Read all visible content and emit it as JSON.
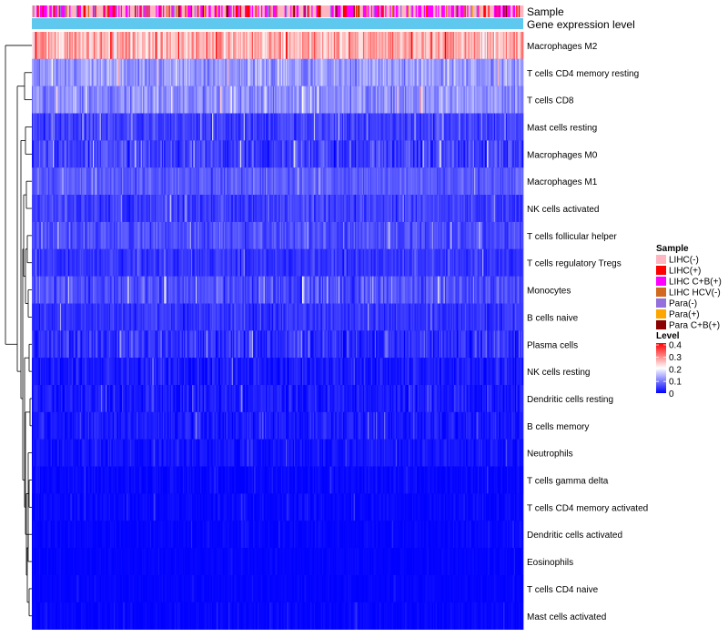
{
  "chart_data": {
    "type": "heatmap",
    "annotation_tracks": [
      "Sample",
      "Gene expression level"
    ],
    "rows": [
      {
        "label": "Macrophages M2",
        "mean": 0.26,
        "spread": 0.1
      },
      {
        "label": "T cells CD4 memory resting",
        "mean": 0.12,
        "spread": 0.07
      },
      {
        "label": "T cells CD8",
        "mean": 0.11,
        "spread": 0.07
      },
      {
        "label": "Mast cells resting",
        "mean": 0.05,
        "spread": 0.05
      },
      {
        "label": "Macrophages M0",
        "mean": 0.05,
        "spread": 0.07
      },
      {
        "label": "Macrophages M1",
        "mean": 0.07,
        "spread": 0.04
      },
      {
        "label": "NK cells activated",
        "mean": 0.05,
        "spread": 0.05
      },
      {
        "label": "T cells follicular helper",
        "mean": 0.06,
        "spread": 0.05
      },
      {
        "label": "T cells regulatory  Tregs",
        "mean": 0.04,
        "spread": 0.04
      },
      {
        "label": "Monocytes",
        "mean": 0.06,
        "spread": 0.06
      },
      {
        "label": "B cells naive",
        "mean": 0.04,
        "spread": 0.04
      },
      {
        "label": "Plasma cells",
        "mean": 0.04,
        "spread": 0.06
      },
      {
        "label": "NK cells resting",
        "mean": 0.02,
        "spread": 0.04
      },
      {
        "label": "Dendritic cells resting",
        "mean": 0.02,
        "spread": 0.04
      },
      {
        "label": "B cells memory",
        "mean": 0.02,
        "spread": 0.04
      },
      {
        "label": "Neutrophils",
        "mean": 0.015,
        "spread": 0.03
      },
      {
        "label": "T cells gamma delta",
        "mean": 0.005,
        "spread": 0.02
      },
      {
        "label": "T cells CD4 memory activated",
        "mean": 0.005,
        "spread": 0.02
      },
      {
        "label": "Dendritic cells activated",
        "mean": 0.004,
        "spread": 0.015
      },
      {
        "label": "Eosinophils",
        "mean": 0.003,
        "spread": 0.01
      },
      {
        "label": "T cells CD4 naive",
        "mean": 0.003,
        "spread": 0.01
      },
      {
        "label": "Mast cells activated",
        "mean": 0.004,
        "spread": 0.015
      }
    ],
    "sample_legend": {
      "title": "Sample",
      "items": [
        {
          "label": "LIHC(-)",
          "color": "#FFB6C1"
        },
        {
          "label": "LIHC(+)",
          "color": "#FF0000"
        },
        {
          "label": "LIHC C+B(+)",
          "color": "#FF00FF"
        },
        {
          "label": "LIHC HCV(-)",
          "color": "#D2691E"
        },
        {
          "label": "Para(-)",
          "color": "#9370DB"
        },
        {
          "label": "Para(+)",
          "color": "#FFA500"
        },
        {
          "label": "Para C+B(+)",
          "color": "#8B0000"
        }
      ]
    },
    "level_legend": {
      "title": "Level",
      "ticks": [
        "0.4",
        "0.3",
        "0.2",
        "0.1",
        "0"
      ],
      "range": [
        0,
        0.4
      ],
      "colors": [
        "#0000FF",
        "#FFFFFF",
        "#FF0000"
      ]
    },
    "gene_expression_color": "#5EC8EE",
    "n_samples": 420
  }
}
